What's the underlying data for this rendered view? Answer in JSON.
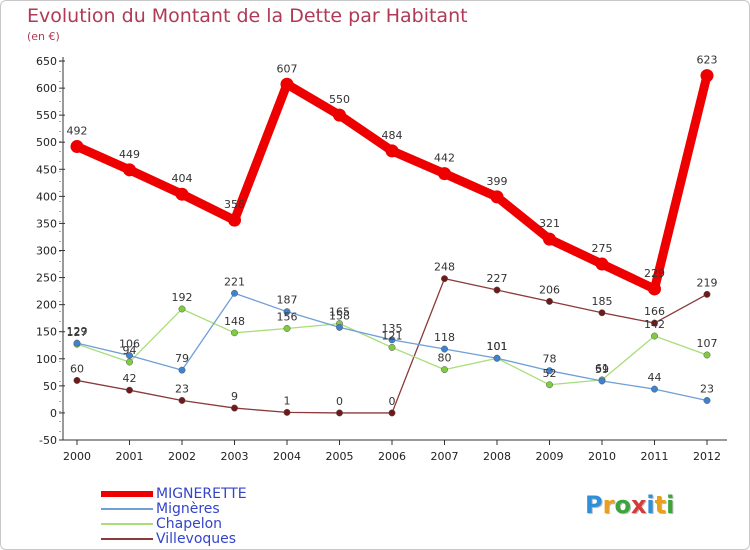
{
  "header": {
    "title": "Evolution du Montant de la Dette par Habitant",
    "subtitle": "(en €)"
  },
  "logo": {
    "text": "Proxiti",
    "letter_colors": [
      "#2f8fd8",
      "#e8a020",
      "#3aa53a",
      "#d83a3a",
      "#2f8fd8",
      "#e8a020",
      "#3aa53a"
    ]
  },
  "chart_data": {
    "type": "line",
    "title": "Evolution du Montant de la Dette par Habitant",
    "subtitle": "(en €)",
    "xlabel": "",
    "ylabel": "",
    "x": [
      "2000",
      "2001",
      "2002",
      "2003",
      "2004",
      "2005",
      "2006",
      "2007",
      "2008",
      "2009",
      "2010",
      "2011",
      "2012"
    ],
    "ylim": [
      -50,
      650
    ],
    "yticks": [
      -50,
      0,
      50,
      100,
      150,
      200,
      250,
      300,
      350,
      400,
      450,
      500,
      550,
      600,
      650
    ],
    "grid": false,
    "legend_position": "bottom-left",
    "series": [
      {
        "name": "MIGNERETTE",
        "color": "#ee0000",
        "marker_color": "#ee0000",
        "values": [
          492,
          449,
          404,
          356,
          607,
          550,
          484,
          442,
          399,
          321,
          275,
          229,
          623
        ],
        "labels": [
          "492",
          "449",
          "404",
          "356",
          "607",
          "550",
          "484",
          "442",
          "399",
          "321",
          "275",
          "229",
          "623"
        ],
        "thick": true
      },
      {
        "name": "Mignères",
        "color": "#6e9fd6",
        "marker_color": "#3f82cf",
        "values": [
          129,
          106,
          79,
          221,
          187,
          158,
          135,
          118,
          101,
          78,
          59,
          44,
          23
        ],
        "labels": [
          "129",
          "106",
          "79",
          "221",
          "187",
          "158",
          "135",
          "118",
          "101",
          "78",
          "59",
          "44",
          "23"
        ]
      },
      {
        "name": "Chapelon",
        "color": "#a8dd7a",
        "marker_color": "#80cc40",
        "values": [
          127,
          94,
          192,
          148,
          156,
          165,
          121,
          80,
          101,
          52,
          61,
          142,
          107
        ],
        "labels": [
          "127",
          "94",
          "192",
          "148",
          "156",
          "165",
          "121",
          "80",
          "101",
          "52",
          "61",
          "142",
          "107"
        ]
      },
      {
        "name": "Villevoques",
        "color": "#8a3a3a",
        "marker_color": "#6e1a1a",
        "values": [
          60,
          42,
          23,
          9,
          1,
          0,
          0,
          248,
          227,
          206,
          185,
          166,
          219
        ],
        "labels": [
          "60",
          "42",
          "23",
          "9",
          "1",
          "0",
          "0",
          "248",
          "227",
          "206",
          "185",
          "166",
          "219"
        ]
      }
    ]
  }
}
